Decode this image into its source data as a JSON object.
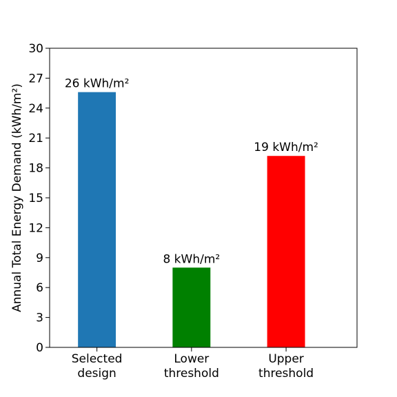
{
  "chart_data": {
    "type": "bar",
    "title": "",
    "xlabel": "",
    "ylabel": "Annual Total Energy Demand (kWh/m²)",
    "ylim": [
      0,
      30
    ],
    "yticks": [
      0,
      3,
      6,
      9,
      12,
      15,
      18,
      21,
      24,
      27,
      30
    ],
    "grid": false,
    "legend": "none",
    "categories": [
      [
        "Selected",
        "design"
      ],
      [
        "Lower",
        "threshold"
      ],
      [
        "Upper",
        "threshold"
      ]
    ],
    "values": [
      25.6,
      8.0,
      19.2
    ],
    "data_labels": [
      "26 kWh/m²",
      "8 kWh/m²",
      "19 kWh/m²"
    ],
    "colors": [
      "#1f77b4",
      "#008000",
      "#ff0000"
    ]
  }
}
